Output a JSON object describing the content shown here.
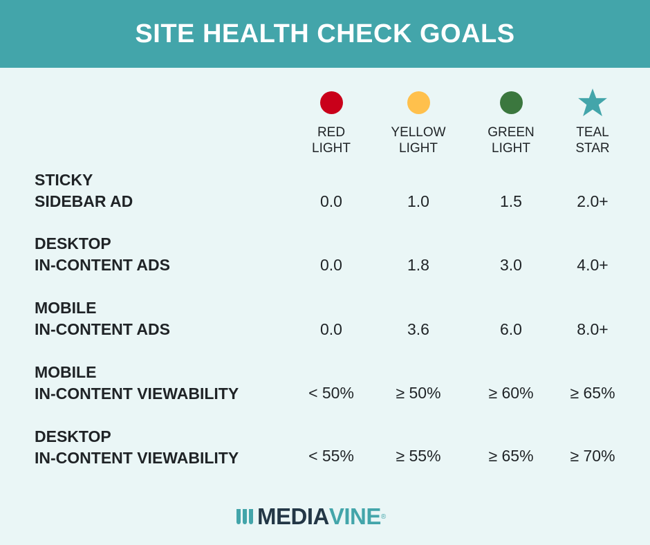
{
  "header": {
    "title": "SITE HEALTH CHECK GOALS"
  },
  "colors": {
    "header": "#43a5aa",
    "background": "#eaf6f6",
    "red": "#c9001a",
    "yellow": "#ffc04c",
    "green": "#3b773e",
    "teal": "#43a5aa"
  },
  "columns": [
    {
      "label": "RED\nLIGHT",
      "icon": "red-circle-icon"
    },
    {
      "label": "YELLOW\nLIGHT",
      "icon": "yellow-circle-icon"
    },
    {
      "label": "GREEN\nLIGHT",
      "icon": "green-circle-icon"
    },
    {
      "label": "TEAL\nSTAR",
      "icon": "teal-star-icon"
    }
  ],
  "rows": [
    {
      "label": "STICKY\nSIDEBAR AD",
      "values": [
        "0.0",
        "1.0",
        "1.5",
        "2.0+"
      ]
    },
    {
      "label": "DESKTOP\nIN-CONTENT ADS",
      "values": [
        "0.0",
        "1.8",
        "3.0",
        "4.0+"
      ]
    },
    {
      "label": "MOBILE\nIN-CONTENT ADS",
      "values": [
        "0.0",
        "3.6",
        "6.0",
        "8.0+"
      ]
    },
    {
      "label": "MOBILE\nIN-CONTENT VIEWABILITY",
      "values": [
        "< 50%",
        "≥ 50%",
        "≥ 60%",
        "≥ 65%"
      ]
    },
    {
      "label": "DESKTOP\nIN-CONTENT VIEWABILITY",
      "values": [
        "< 55%",
        "≥ 55%",
        "≥ 65%",
        "≥ 70%"
      ]
    }
  ],
  "logo": {
    "text_dark": "MEDIA",
    "text_teal": "VINE",
    "registered": "®"
  }
}
